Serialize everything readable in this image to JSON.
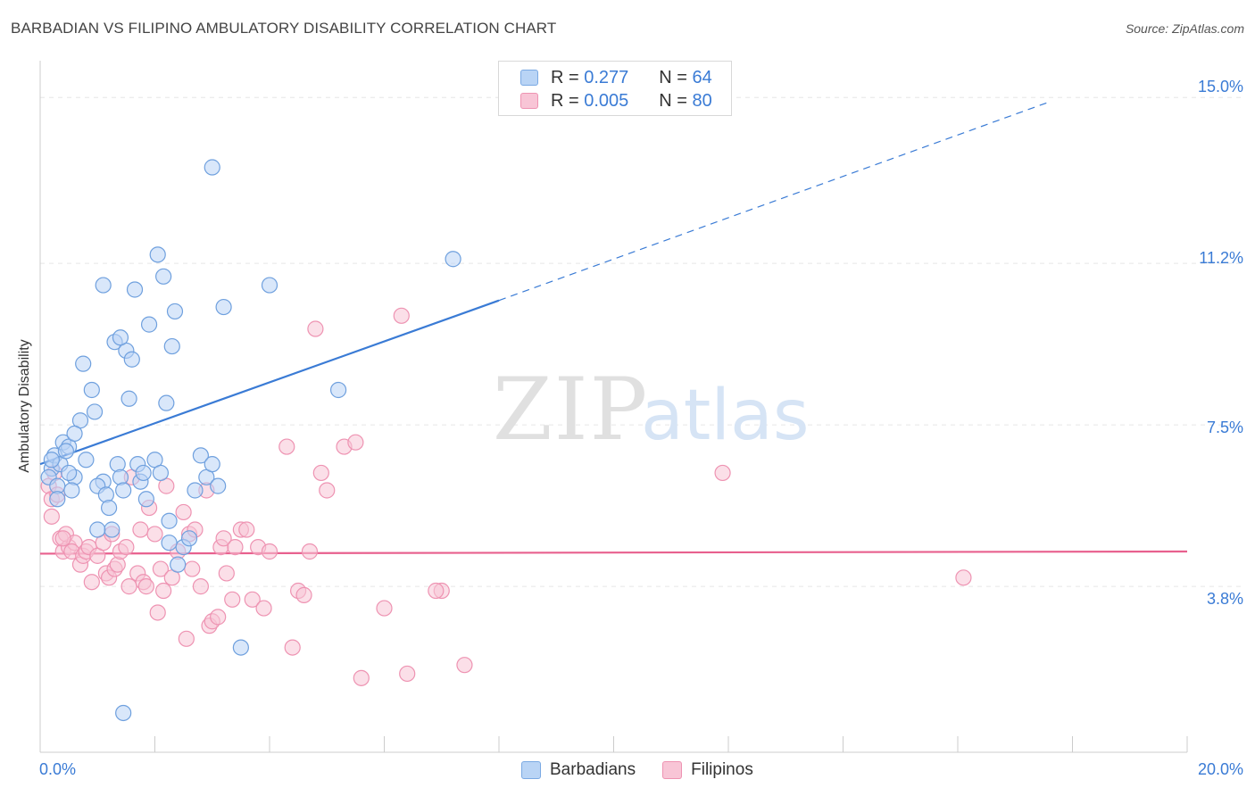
{
  "title": "BARBADIAN VS FILIPINO AMBULATORY DISABILITY CORRELATION CHART",
  "source": "Source: ZipAtlas.com",
  "colors": {
    "blue": "#3a7bd5",
    "pink": "#e8608e",
    "blue_fill": "#b9d4f5",
    "pink_fill": "#f8c5d6",
    "grid": "#e6e6e6"
  },
  "legend": {
    "blue": {
      "r_label": "R =",
      "r_value": "0.277",
      "n_label": "N =",
      "n_value": "64"
    },
    "pink": {
      "r_label": "R =",
      "r_value": "0.005",
      "n_label": "N =",
      "n_value": "80"
    }
  },
  "bottom_legend": {
    "barbadians": "Barbadians",
    "filipinos": "Filipinos"
  },
  "chart_data": {
    "type": "scatter",
    "title": "BARBADIAN VS FILIPINO AMBULATORY DISABILITY CORRELATION CHART",
    "xlabel": "",
    "ylabel": "Ambulatory Disability",
    "xlim": [
      0,
      20
    ],
    "ylim": [
      0,
      15.7
    ],
    "x_tick_labels": {
      "left": "0.0%",
      "right": "20.0%"
    },
    "y_ticks": [
      {
        "value": 3.8,
        "label": "3.8%"
      },
      {
        "value": 7.5,
        "label": "7.5%"
      },
      {
        "value": 11.2,
        "label": "11.2%"
      },
      {
        "value": 15.0,
        "label": "15.0%"
      }
    ],
    "watermark": "ZIPatlas",
    "series": [
      {
        "name": "Barbadians",
        "color": "#3a7bd5",
        "r": 0.277,
        "n": 64,
        "trend": {
          "x0": 0.0,
          "y0": 6.6,
          "x1": 8.0,
          "y1": 10.35,
          "dashed_to_x": 17.6,
          "dashed_to_y": 14.9
        },
        "points": [
          [
            0.2,
            6.5
          ],
          [
            0.15,
            6.3
          ],
          [
            0.3,
            6.1
          ],
          [
            0.25,
            6.8
          ],
          [
            0.4,
            7.1
          ],
          [
            0.35,
            6.6
          ],
          [
            0.5,
            7.0
          ],
          [
            0.45,
            6.9
          ],
          [
            0.6,
            6.3
          ],
          [
            0.55,
            6.0
          ],
          [
            0.7,
            7.6
          ],
          [
            0.8,
            6.7
          ],
          [
            0.9,
            8.3
          ],
          [
            0.75,
            8.9
          ],
          [
            0.95,
            7.8
          ],
          [
            1.1,
            6.2
          ],
          [
            1.0,
            6.1
          ],
          [
            1.15,
            5.9
          ],
          [
            1.2,
            5.6
          ],
          [
            1.25,
            5.1
          ],
          [
            1.35,
            6.6
          ],
          [
            1.4,
            6.3
          ],
          [
            1.45,
            6.0
          ],
          [
            1.3,
            9.4
          ],
          [
            1.5,
            9.2
          ],
          [
            1.55,
            8.1
          ],
          [
            1.6,
            9.0
          ],
          [
            1.4,
            9.5
          ],
          [
            1.65,
            10.6
          ],
          [
            1.7,
            6.6
          ],
          [
            1.75,
            6.2
          ],
          [
            1.8,
            6.4
          ],
          [
            1.85,
            5.8
          ],
          [
            1.9,
            9.8
          ],
          [
            2.0,
            6.7
          ],
          [
            2.1,
            6.4
          ],
          [
            2.05,
            11.4
          ],
          [
            2.15,
            10.9
          ],
          [
            2.2,
            8.0
          ],
          [
            2.25,
            5.3
          ],
          [
            2.3,
            9.3
          ],
          [
            2.35,
            10.1
          ],
          [
            2.4,
            4.3
          ],
          [
            2.5,
            4.7
          ],
          [
            2.6,
            4.9
          ],
          [
            2.7,
            6.0
          ],
          [
            2.8,
            6.8
          ],
          [
            2.9,
            6.3
          ],
          [
            3.0,
            6.6
          ],
          [
            3.1,
            6.1
          ],
          [
            3.2,
            10.2
          ],
          [
            1.0,
            5.1
          ],
          [
            3.0,
            13.4
          ],
          [
            3.5,
            2.4
          ],
          [
            4.0,
            10.7
          ],
          [
            1.45,
            0.9
          ],
          [
            5.2,
            8.3
          ],
          [
            7.2,
            11.3
          ],
          [
            0.6,
            7.3
          ],
          [
            1.1,
            10.7
          ],
          [
            0.2,
            6.7
          ],
          [
            0.5,
            6.4
          ],
          [
            2.25,
            4.8
          ],
          [
            0.3,
            5.8
          ]
        ]
      },
      {
        "name": "Filipinos",
        "color": "#e8608e",
        "r": 0.005,
        "n": 80,
        "trend": {
          "x0": 0.0,
          "y0": 4.55,
          "x1": 20.0,
          "y1": 4.6
        },
        "points": [
          [
            0.15,
            6.1
          ],
          [
            0.2,
            5.8
          ],
          [
            0.25,
            6.4
          ],
          [
            0.2,
            5.4
          ],
          [
            0.35,
            4.9
          ],
          [
            0.4,
            4.6
          ],
          [
            0.5,
            4.7
          ],
          [
            0.45,
            5.0
          ],
          [
            0.6,
            4.8
          ],
          [
            0.55,
            4.6
          ],
          [
            0.7,
            4.3
          ],
          [
            0.75,
            4.5
          ],
          [
            0.8,
            4.6
          ],
          [
            0.85,
            4.7
          ],
          [
            0.9,
            3.9
          ],
          [
            1.0,
            4.5
          ],
          [
            1.1,
            4.8
          ],
          [
            1.15,
            4.1
          ],
          [
            1.2,
            4.0
          ],
          [
            1.25,
            5.0
          ],
          [
            1.3,
            4.2
          ],
          [
            1.35,
            4.3
          ],
          [
            1.4,
            4.6
          ],
          [
            1.5,
            4.7
          ],
          [
            1.55,
            3.8
          ],
          [
            1.6,
            6.3
          ],
          [
            1.7,
            4.1
          ],
          [
            1.75,
            5.1
          ],
          [
            1.8,
            3.9
          ],
          [
            1.85,
            3.8
          ],
          [
            1.9,
            5.6
          ],
          [
            2.0,
            5.0
          ],
          [
            2.05,
            3.2
          ],
          [
            2.1,
            4.2
          ],
          [
            2.15,
            3.7
          ],
          [
            2.2,
            6.1
          ],
          [
            2.3,
            4.0
          ],
          [
            2.4,
            4.6
          ],
          [
            2.5,
            5.5
          ],
          [
            2.55,
            2.6
          ],
          [
            2.6,
            5.0
          ],
          [
            2.65,
            4.2
          ],
          [
            2.7,
            5.1
          ],
          [
            2.8,
            3.8
          ],
          [
            2.9,
            6.0
          ],
          [
            2.95,
            2.9
          ],
          [
            3.0,
            3.0
          ],
          [
            3.1,
            3.1
          ],
          [
            3.15,
            4.7
          ],
          [
            3.2,
            4.9
          ],
          [
            3.25,
            4.1
          ],
          [
            3.35,
            3.5
          ],
          [
            3.4,
            4.7
          ],
          [
            3.5,
            5.1
          ],
          [
            3.6,
            5.1
          ],
          [
            3.7,
            3.5
          ],
          [
            3.8,
            4.7
          ],
          [
            3.9,
            3.3
          ],
          [
            4.0,
            4.6
          ],
          [
            4.3,
            7.0
          ],
          [
            4.4,
            2.4
          ],
          [
            4.5,
            3.7
          ],
          [
            4.6,
            3.6
          ],
          [
            4.7,
            4.6
          ],
          [
            4.8,
            9.7
          ],
          [
            4.9,
            6.4
          ],
          [
            5.0,
            6.0
          ],
          [
            5.3,
            7.0
          ],
          [
            5.5,
            7.1
          ],
          [
            5.6,
            1.7
          ],
          [
            6.0,
            3.3
          ],
          [
            6.3,
            10.0
          ],
          [
            6.4,
            1.8
          ],
          [
            7.0,
            3.7
          ],
          [
            6.9,
            3.7
          ],
          [
            7.4,
            2.0
          ],
          [
            11.9,
            6.4
          ],
          [
            16.1,
            4.0
          ],
          [
            0.3,
            5.9
          ],
          [
            0.4,
            4.9
          ]
        ]
      }
    ]
  }
}
